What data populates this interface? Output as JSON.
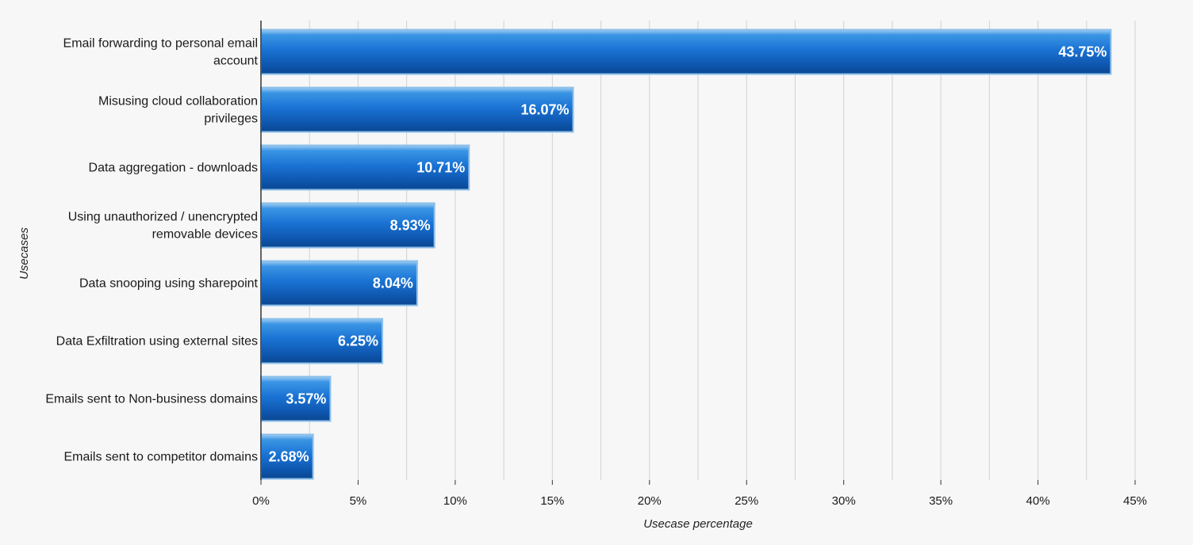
{
  "chart_data": {
    "type": "bar",
    "orientation": "horizontal",
    "title": "",
    "xlabel": "Usecase percentage",
    "ylabel": "Usecases",
    "xlim": [
      0,
      45
    ],
    "x_ticks": [
      "0%",
      "5%",
      "10%",
      "15%",
      "20%",
      "25%",
      "30%",
      "35%",
      "40%",
      "45%"
    ],
    "grid": "vertical",
    "legend": "none",
    "bar_color": "#1a73d4",
    "categories": [
      [
        "Email forwarding to personal email",
        "account"
      ],
      [
        "Misusing cloud collaboration",
        "privileges"
      ],
      [
        "Data aggregation - downloads"
      ],
      [
        "Using unauthorized / unencrypted",
        "removable devices"
      ],
      [
        "Data snooping using sharepoint"
      ],
      [
        "Data Exfiltration using external sites"
      ],
      [
        "Emails sent to Non-business domains"
      ],
      [
        "Emails sent to competitor domains"
      ]
    ],
    "values": [
      43.75,
      16.07,
      10.71,
      8.93,
      8.04,
      6.25,
      3.57,
      2.68
    ],
    "value_labels": [
      "43.75%",
      "16.07%",
      "10.71%",
      "8.93%",
      "8.04%",
      "6.25%",
      "3.57%",
      "2.68%"
    ]
  }
}
